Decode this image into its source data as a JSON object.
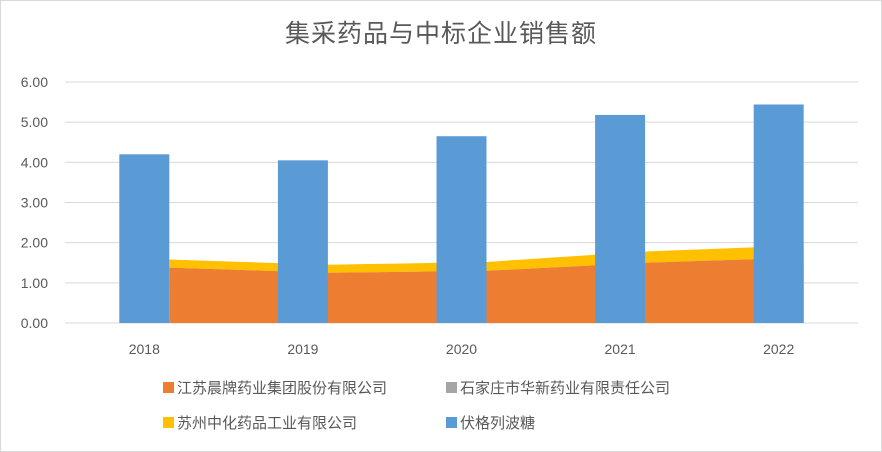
{
  "chart_data": {
    "type": "area+bar",
    "title": "集采药品与中标企业销售额",
    "categories": [
      "2018",
      "2019",
      "2020",
      "2021",
      "2022"
    ],
    "ylim": [
      0,
      6
    ],
    "yticks": [
      "0.00",
      "1.00",
      "2.00",
      "3.00",
      "4.00",
      "5.00",
      "6.00"
    ],
    "grid": true,
    "legend_position": "bottom",
    "series": [
      {
        "name": "江苏晨牌药业集团股份有限公司",
        "type": "stacked-area",
        "color": "#ED7D31",
        "values": [
          1.38,
          1.25,
          1.3,
          1.5,
          1.63
        ]
      },
      {
        "name": "石家庄市华新药业有限责任公司",
        "type": "stacked-area",
        "color": "#A5A5A5",
        "values": [
          0.0,
          0.0,
          0.0,
          0.0,
          0.0
        ]
      },
      {
        "name": "苏州中化药品工业有限公司",
        "type": "stacked-area",
        "color": "#FFC000",
        "values": [
          0.2,
          0.2,
          0.22,
          0.28,
          0.3
        ]
      },
      {
        "name": "伏格列波糖",
        "type": "bar",
        "color": "#5B9BD5",
        "values": [
          4.2,
          4.05,
          4.65,
          5.18,
          5.44
        ]
      }
    ]
  }
}
